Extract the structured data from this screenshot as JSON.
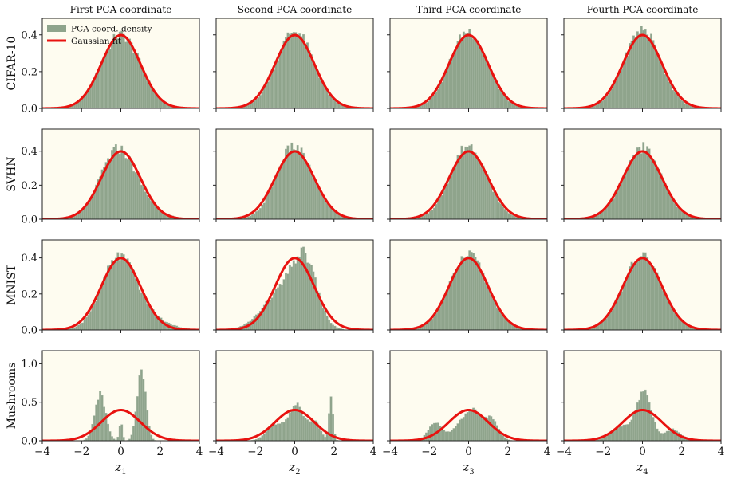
{
  "chart_data": {
    "type": "histogram-grid",
    "column_titles": [
      "First PCA coordinate",
      "Second PCA coordinate",
      "Third PCA coordinate",
      "Fourth PCA coordinate"
    ],
    "row_labels": [
      "CIFAR-10",
      "SVHN",
      "MNIST",
      "Mushrooms"
    ],
    "x_axis_labels": [
      {
        "base": "z",
        "sub": "1"
      },
      {
        "base": "z",
        "sub": "2"
      },
      {
        "base": "z",
        "sub": "3"
      },
      {
        "base": "z",
        "sub": "4"
      }
    ],
    "xlim": [
      -4,
      4
    ],
    "x_ticks": [
      -4,
      -2,
      0,
      2,
      4
    ],
    "x_tick_labels": [
      "−4",
      "−2",
      "0",
      "2",
      "4"
    ],
    "row_ylims": [
      [
        0,
        0.49
      ],
      [
        0,
        0.53
      ],
      [
        0,
        0.5
      ],
      [
        0,
        1.17
      ]
    ],
    "row_y_ticks": [
      [
        0.0,
        0.2,
        0.4
      ],
      [
        0.0,
        0.2,
        0.4
      ],
      [
        0.0,
        0.2,
        0.4
      ],
      [
        0.0,
        0.5,
        1.0
      ]
    ],
    "row_y_tick_labels": [
      [
        "0.0",
        "0.2",
        "0.4"
      ],
      [
        "0.0",
        "0.2",
        "0.4"
      ],
      [
        "0.0",
        "0.2",
        "0.4"
      ],
      [
        "0.0",
        "0.5",
        "1.0"
      ]
    ],
    "legend": {
      "location": "top-left of first panel",
      "entries": [
        {
          "label": "PCA coord. density",
          "kind": "bar"
        },
        {
          "label": "Gaussian fit",
          "kind": "line"
        }
      ]
    },
    "gaussian_fit": {
      "mean": 0,
      "std": 1,
      "peak_density": 0.3989
    },
    "histogram_bin_width": 0.1,
    "distributions": [
      [
        {
          "comps": [
            {
              "w": 1.0,
              "mu": 0.0,
              "sd": 1.0
            }
          ],
          "skew": 0.0
        },
        {
          "comps": [
            {
              "w": 1.0,
              "mu": 0.0,
              "sd": 0.95
            }
          ],
          "skew": 0.0
        },
        {
          "comps": [
            {
              "w": 1.0,
              "mu": 0.0,
              "sd": 0.95
            }
          ],
          "skew": 0.0
        },
        {
          "comps": [
            {
              "w": 1.0,
              "mu": 0.0,
              "sd": 0.93
            }
          ],
          "skew": 0.0
        }
      ],
      [
        {
          "comps": [
            {
              "w": 0.7,
              "mu": -0.25,
              "sd": 0.85
            },
            {
              "w": 0.3,
              "mu": 0.6,
              "sd": 1.05
            }
          ],
          "skew": 0.0
        },
        {
          "comps": [
            {
              "w": 0.7,
              "mu": -0.15,
              "sd": 0.85
            },
            {
              "w": 0.3,
              "mu": 0.5,
              "sd": 1.05
            }
          ],
          "skew": 0.0
        },
        {
          "comps": [
            {
              "w": 1.0,
              "mu": 0.0,
              "sd": 0.92
            }
          ],
          "skew": 0.0
        },
        {
          "comps": [
            {
              "w": 1.0,
              "mu": 0.0,
              "sd": 0.95
            }
          ],
          "skew": 0.0
        }
      ],
      [
        {
          "comps": [
            {
              "w": 0.72,
              "mu": -0.15,
              "sd": 0.85
            },
            {
              "w": 0.28,
              "mu": 0.75,
              "sd": 1.2
            }
          ],
          "skew": 0.0
        },
        {
          "comps": [
            {
              "w": 0.45,
              "mu": 0.55,
              "sd": 0.6
            },
            {
              "w": 0.55,
              "mu": -0.55,
              "sd": 1.0
            }
          ],
          "skew": 0.0
        },
        {
          "comps": [
            {
              "w": 1.0,
              "mu": 0.0,
              "sd": 0.97
            }
          ],
          "skew": 0.0
        },
        {
          "comps": [
            {
              "w": 1.0,
              "mu": 0.0,
              "sd": 0.97
            }
          ],
          "skew": 0.0
        }
      ],
      [
        {
          "comps": [
            {
              "w": 0.43,
              "mu": -1.05,
              "sd": 0.28
            },
            {
              "w": 0.05,
              "mu": 0.0,
              "sd": 0.08
            },
            {
              "w": 0.52,
              "mu": 1.05,
              "sd": 0.22
            }
          ],
          "skew": 0.0
        },
        {
          "comps": [
            {
              "w": 0.25,
              "mu": -0.95,
              "sd": 0.45
            },
            {
              "w": 0.42,
              "mu": 0.1,
              "sd": 0.35
            },
            {
              "w": 0.18,
              "mu": 1.0,
              "sd": 0.3
            },
            {
              "w": 0.15,
              "mu": 1.85,
              "sd": 0.1
            }
          ],
          "skew": 0.0
        },
        {
          "comps": [
            {
              "w": 0.2,
              "mu": -1.7,
              "sd": 0.35
            },
            {
              "w": 0.65,
              "mu": 0.15,
              "sd": 0.65
            },
            {
              "w": 0.15,
              "mu": 1.25,
              "sd": 0.3
            }
          ],
          "skew": 0.0
        },
        {
          "comps": [
            {
              "w": 0.6,
              "mu": 0.1,
              "sd": 0.38
            },
            {
              "w": 0.25,
              "mu": -1.0,
              "sd": 0.55
            },
            {
              "w": 0.15,
              "mu": 1.55,
              "sd": 0.4
            }
          ],
          "skew": 0.0
        }
      ]
    ]
  },
  "colors": {
    "panel_background": "#fefcf0",
    "bar_fill": "#8fa48c",
    "bar_stroke": "#a9b9a6",
    "gaussian_line": "#e8120f",
    "axis": "#222222",
    "text": "#111111"
  }
}
